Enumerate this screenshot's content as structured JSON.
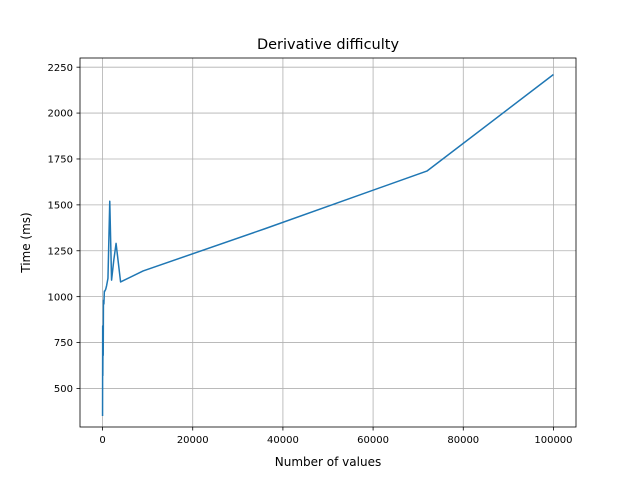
{
  "chart_data": {
    "type": "line",
    "title": "Derivative difficulty",
    "xlabel": "Number of values",
    "ylabel": "Time (ms)",
    "xlim": [
      -5000,
      105000
    ],
    "ylim": [
      290,
      2300
    ],
    "grid": true,
    "x_ticks": [
      0,
      20000,
      40000,
      60000,
      80000,
      100000
    ],
    "y_ticks": [
      500,
      750,
      1000,
      1250,
      1500,
      1750,
      2000,
      2250
    ],
    "series": [
      {
        "color": "#1f77b4",
        "x": [
          0,
          30,
          60,
          100,
          150,
          200,
          300,
          400,
          500,
          700,
          900,
          1200,
          1600,
          2000,
          2500,
          3000,
          4000,
          9000,
          36000,
          72000,
          100000
        ],
        "y": [
          350,
          840,
          570,
          800,
          680,
          980,
          960,
          1030,
          1030,
          1040,
          1060,
          1100,
          1520,
          1090,
          1200,
          1290,
          1080,
          1140,
          1370,
          1685,
          2210
        ]
      }
    ]
  }
}
